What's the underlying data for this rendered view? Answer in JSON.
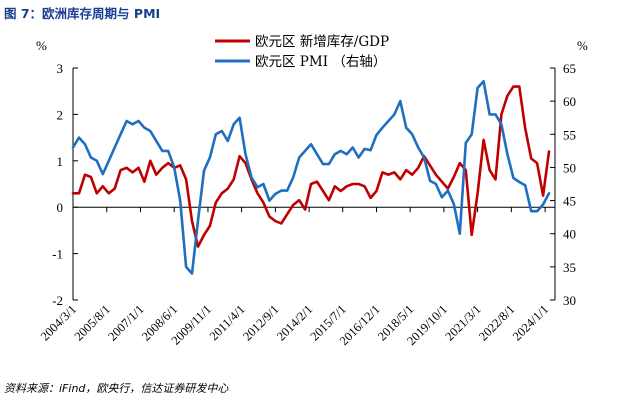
{
  "figure_title": "图 7：欧洲库存周期与 PMI",
  "source_note": "资料来源：iFind，欧央行，信达证券研发中心",
  "colors": {
    "series_0": "#c00000",
    "series_1": "#1f6fc1"
  },
  "chart_data": {
    "type": "line",
    "title": "",
    "left_axis": {
      "unit_label": "%",
      "ticks": [
        "3",
        "2",
        "1",
        "0",
        "-1",
        "-2"
      ],
      "ylim": [
        -2,
        3
      ]
    },
    "right_axis": {
      "unit_label": "%",
      "ticks": [
        "65",
        "60",
        "55",
        "50",
        "45",
        "40",
        "35",
        "30"
      ],
      "ylim": [
        30,
        65
      ]
    },
    "x_tick_labels": [
      "2004/3/1",
      "2005/8/1",
      "2007/1/1",
      "2008/6/1",
      "2009/11/1",
      "2011/4/1",
      "2012/9/1",
      "2014/2/1",
      "2015/7/1",
      "2016/12/1",
      "2018/5/1",
      "2019/10/1",
      "2021/3/1",
      "2022/8/1",
      "2024/1/1"
    ],
    "x_range": [
      "2004/3/1",
      "2024/6/1"
    ],
    "grid": false,
    "legend_position": "top-center",
    "series": [
      {
        "name": "欧元区 新增库存/GDP",
        "axis": "left",
        "color": "#c00000",
        "points": [
          [
            "2004/3/1",
            0.3
          ],
          [
            "2004/6/1",
            0.3
          ],
          [
            "2004/9/1",
            0.7
          ],
          [
            "2004/12/1",
            0.65
          ],
          [
            "2005/3/1",
            0.3
          ],
          [
            "2005/6/1",
            0.45
          ],
          [
            "2005/9/1",
            0.3
          ],
          [
            "2005/12/1",
            0.4
          ],
          [
            "2006/3/1",
            0.8
          ],
          [
            "2006/6/1",
            0.85
          ],
          [
            "2006/9/1",
            0.75
          ],
          [
            "2006/12/1",
            0.85
          ],
          [
            "2007/3/1",
            0.55
          ],
          [
            "2007/6/1",
            1.0
          ],
          [
            "2007/9/1",
            0.7
          ],
          [
            "2007/12/1",
            0.85
          ],
          [
            "2008/3/1",
            0.95
          ],
          [
            "2008/6/1",
            0.85
          ],
          [
            "2008/9/1",
            0.9
          ],
          [
            "2008/12/1",
            0.6
          ],
          [
            "2009/3/1",
            -0.3
          ],
          [
            "2009/6/1",
            -0.85
          ],
          [
            "2009/9/1",
            -0.6
          ],
          [
            "2009/12/1",
            -0.4
          ],
          [
            "2010/3/1",
            0.1
          ],
          [
            "2010/6/1",
            0.3
          ],
          [
            "2010/9/1",
            0.4
          ],
          [
            "2010/12/1",
            0.6
          ],
          [
            "2011/3/1",
            1.1
          ],
          [
            "2011/6/1",
            0.95
          ],
          [
            "2011/9/1",
            0.6
          ],
          [
            "2011/12/1",
            0.3
          ],
          [
            "2012/3/1",
            0.1
          ],
          [
            "2012/6/1",
            -0.2
          ],
          [
            "2012/9/1",
            -0.3
          ],
          [
            "2012/12/1",
            -0.35
          ],
          [
            "2013/3/1",
            -0.15
          ],
          [
            "2013/6/1",
            0.05
          ],
          [
            "2013/9/1",
            0.15
          ],
          [
            "2013/12/1",
            -0.05
          ],
          [
            "2014/3/1",
            0.5
          ],
          [
            "2014/6/1",
            0.55
          ],
          [
            "2014/9/1",
            0.35
          ],
          [
            "2014/12/1",
            0.15
          ],
          [
            "2015/3/1",
            0.45
          ],
          [
            "2015/6/1",
            0.35
          ],
          [
            "2015/9/1",
            0.45
          ],
          [
            "2015/12/1",
            0.5
          ],
          [
            "2016/3/1",
            0.5
          ],
          [
            "2016/6/1",
            0.45
          ],
          [
            "2016/9/1",
            0.2
          ],
          [
            "2016/12/1",
            0.35
          ],
          [
            "2017/3/1",
            0.75
          ],
          [
            "2017/6/1",
            0.7
          ],
          [
            "2017/9/1",
            0.75
          ],
          [
            "2017/12/1",
            0.6
          ],
          [
            "2018/3/1",
            0.8
          ],
          [
            "2018/6/1",
            0.7
          ],
          [
            "2018/9/1",
            0.85
          ],
          [
            "2018/12/1",
            1.1
          ],
          [
            "2019/3/1",
            0.9
          ],
          [
            "2019/6/1",
            0.7
          ],
          [
            "2019/9/1",
            0.55
          ],
          [
            "2019/12/1",
            0.4
          ],
          [
            "2020/3/1",
            0.65
          ],
          [
            "2020/6/1",
            0.95
          ],
          [
            "2020/9/1",
            0.8
          ],
          [
            "2020/12/1",
            -0.6
          ],
          [
            "2021/3/1",
            0.3
          ],
          [
            "2021/6/1",
            1.45
          ],
          [
            "2021/9/1",
            0.8
          ],
          [
            "2021/12/1",
            0.6
          ],
          [
            "2022/3/1",
            2.0
          ],
          [
            "2022/6/1",
            2.4
          ],
          [
            "2022/9/1",
            2.6
          ],
          [
            "2022/12/1",
            2.6
          ],
          [
            "2023/3/1",
            1.7
          ],
          [
            "2023/6/1",
            1.05
          ],
          [
            "2023/9/1",
            0.95
          ],
          [
            "2023/12/1",
            0.25
          ],
          [
            "2024/3/1",
            1.2
          ]
        ]
      },
      {
        "name": "欧元区 PMI （右轴）",
        "axis": "right",
        "color": "#1f6fc1",
        "points": [
          [
            "2004/3/1",
            53
          ],
          [
            "2004/6/1",
            54.5
          ],
          [
            "2004/9/1",
            53.5
          ],
          [
            "2004/12/1",
            51.5
          ],
          [
            "2005/3/1",
            51
          ],
          [
            "2005/6/1",
            49
          ],
          [
            "2005/9/1",
            51
          ],
          [
            "2005/12/1",
            53
          ],
          [
            "2006/3/1",
            55
          ],
          [
            "2006/6/1",
            57
          ],
          [
            "2006/9/1",
            56.5
          ],
          [
            "2006/12/1",
            57
          ],
          [
            "2007/3/1",
            56
          ],
          [
            "2007/6/1",
            55.5
          ],
          [
            "2007/9/1",
            54
          ],
          [
            "2007/12/1",
            52.5
          ],
          [
            "2008/3/1",
            52.5
          ],
          [
            "2008/6/1",
            50
          ],
          [
            "2008/9/1",
            45
          ],
          [
            "2008/12/1",
            35
          ],
          [
            "2009/3/1",
            34
          ],
          [
            "2009/6/1",
            42
          ],
          [
            "2009/9/1",
            49.5
          ],
          [
            "2009/12/1",
            51.5
          ],
          [
            "2010/3/1",
            55
          ],
          [
            "2010/6/1",
            55.5
          ],
          [
            "2010/9/1",
            54
          ],
          [
            "2010/12/1",
            56.5
          ],
          [
            "2011/3/1",
            57.5
          ],
          [
            "2011/6/1",
            52
          ],
          [
            "2011/9/1",
            48.5
          ],
          [
            "2011/12/1",
            47
          ],
          [
            "2012/3/1",
            47.5
          ],
          [
            "2012/6/1",
            45
          ],
          [
            "2012/9/1",
            46
          ],
          [
            "2012/12/1",
            46.5
          ],
          [
            "2013/3/1",
            46.5
          ],
          [
            "2013/6/1",
            48.5
          ],
          [
            "2013/9/1",
            51.5
          ],
          [
            "2013/12/1",
            52.5
          ],
          [
            "2014/3/1",
            53.5
          ],
          [
            "2014/6/1",
            52
          ],
          [
            "2014/9/1",
            50.5
          ],
          [
            "2014/12/1",
            50.5
          ],
          [
            "2015/3/1",
            52
          ],
          [
            "2015/6/1",
            52.5
          ],
          [
            "2015/9/1",
            52
          ],
          [
            "2015/12/1",
            53
          ],
          [
            "2016/3/1",
            51.5
          ],
          [
            "2016/6/1",
            52.8
          ],
          [
            "2016/9/1",
            52.6
          ],
          [
            "2016/12/1",
            54.9
          ],
          [
            "2017/3/1",
            56
          ],
          [
            "2017/6/1",
            57
          ],
          [
            "2017/9/1",
            58
          ],
          [
            "2017/12/1",
            60
          ],
          [
            "2018/3/1",
            56
          ],
          [
            "2018/6/1",
            55
          ],
          [
            "2018/9/1",
            53
          ],
          [
            "2018/12/1",
            51.5
          ],
          [
            "2019/3/1",
            48
          ],
          [
            "2019/6/1",
            47.5
          ],
          [
            "2019/9/1",
            45.5
          ],
          [
            "2019/12/1",
            46.5
          ],
          [
            "2020/3/1",
            44.5
          ],
          [
            "2020/6/1",
            40
          ],
          [
            "2020/9/1",
            53.7
          ],
          [
            "2020/12/1",
            55
          ],
          [
            "2021/3/1",
            62
          ],
          [
            "2021/6/1",
            63
          ],
          [
            "2021/9/1",
            58
          ],
          [
            "2021/12/1",
            58
          ],
          [
            "2022/3/1",
            56.5
          ],
          [
            "2022/6/1",
            52
          ],
          [
            "2022/9/1",
            48.4
          ],
          [
            "2022/12/1",
            47.8
          ],
          [
            "2023/3/1",
            47.3
          ],
          [
            "2023/6/1",
            43.4
          ],
          [
            "2023/9/1",
            43.4
          ],
          [
            "2023/12/1",
            44.4
          ],
          [
            "2024/3/1",
            46.1
          ]
        ]
      }
    ]
  }
}
